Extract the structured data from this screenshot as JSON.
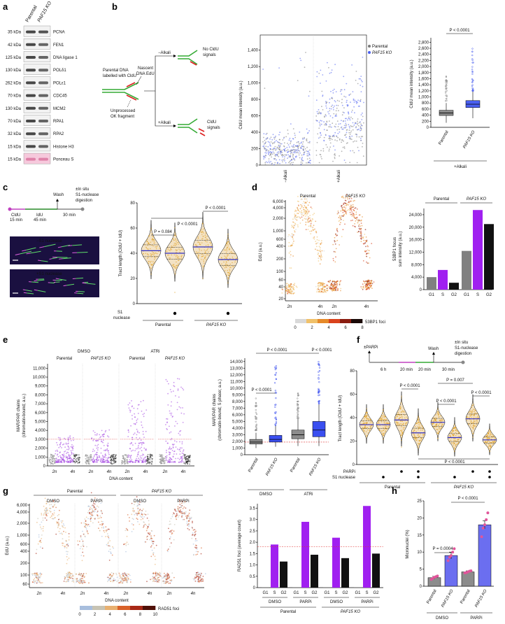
{
  "panels": {
    "a": {
      "label": "a",
      "header_parental": "Parental",
      "header_ko": "PAF15 KO",
      "rows": [
        {
          "kda": "35 kDa",
          "protein": "PCNA"
        },
        {
          "kda": "42 kDa",
          "protein": "FEN1"
        },
        {
          "kda": "125 kDa",
          "protein": "DNA ligase 1"
        },
        {
          "kda": "130 kDa",
          "protein": "POLδ1"
        },
        {
          "kda": "262 kDa",
          "protein": "POLε1"
        },
        {
          "kda": "70 kDa",
          "protein": "CDC45"
        },
        {
          "kda": "130 kDa",
          "protein": "MCM2"
        },
        {
          "kda": "70 kDa",
          "protein": "RPA1"
        },
        {
          "kda": "32 kDa",
          "protein": "RPA2"
        },
        {
          "kda": "15 kDa",
          "protein": "Histone H3"
        },
        {
          "kda": "15 kDa",
          "protein": "Ponceau S"
        }
      ]
    },
    "b": {
      "label": "b",
      "schematic": {
        "parental_line1": "Parental DNA",
        "parental_line2": "labelled with CldU",
        "nascent_line1": "Nascent",
        "nascent_line2": "DNA EdU",
        "minus_alkali": "−Alkali",
        "plus_alkali": "+Alkali",
        "no_signal_line1": "No CldU",
        "no_signal_line2": "signals",
        "signal_line1": "CldU",
        "signal_line2": "signals",
        "unprocessed_line1": "Unprocessed",
        "unprocessed_line2": "OK fragment"
      },
      "scatter": {
        "ylabel": "CldU mean intensity (a.u.)",
        "yticks": [
          "0",
          "200",
          "400",
          "600",
          "800",
          "1,000",
          "1,200",
          "1,400"
        ],
        "xcats": [
          "−Alkali",
          "+Alkali"
        ],
        "legend_parental": "Parental",
        "legend_ko": "PAF15 KO"
      },
      "box": {
        "ylabel": "CldU mean intensity (a.u.)",
        "yticks": [
          "0",
          "200",
          "400",
          "600",
          "800",
          "1,000",
          "1,200",
          "1,400",
          "1,600",
          "1,800",
          "2,000",
          "2,200",
          "2,400",
          "2,600",
          "2,800"
        ],
        "pvalue": "P < 0.0001",
        "xcats": [
          "Parental",
          "PAF15 KO"
        ],
        "group": "+Alkali"
      }
    },
    "c": {
      "label": "c",
      "schematic": {
        "wash": "Wash",
        "cldu": "CldU",
        "cldu_time": "15 min",
        "idu": "IdU",
        "idu_time": "45 min",
        "step_time": "30 min",
        "insitu_line1": "±In situ",
        "insitu_line2": "S1-nuclease",
        "insitu_line3": "digestion"
      },
      "img_minus": "−S1 nuclease",
      "img_plus": "+S1 nuclease",
      "violin": {
        "ylabel": "Tract length (CldU + IdU)",
        "yticks": [
          "0",
          "20",
          "40",
          "60",
          "80"
        ],
        "p1": "P = 0.084",
        "p2": "P < 0.0001",
        "p3": "P < 0.0001",
        "row_label_line1": "S1",
        "row_label_line2": "nuclease",
        "group1": "Parental",
        "group2": "PAF15 KO"
      }
    },
    "d": {
      "label": "d",
      "scatter": {
        "title_parental": "Parental",
        "title_ko": "PAF15 KO",
        "ylabel": "EdU (a.u.)",
        "yticks": [
          "20",
          "40",
          "60",
          "100",
          "200",
          "400",
          "600",
          "1,000",
          "2,000",
          "4,000",
          "6,000"
        ],
        "xticks": [
          "2n",
          "4n",
          "2n",
          "4n"
        ],
        "xlabel": "DNA content",
        "cbar_ticks": [
          "0",
          "2",
          "4",
          "6",
          "8"
        ],
        "cbar_label": "53BP1 foci"
      },
      "bar": {
        "ylabel_line1": "53BP1 focus",
        "ylabel_line2": "sum intensity (a.u.)",
        "yticks": [
          "0",
          "4,000",
          "8,000",
          "12,000",
          "16,000",
          "20,000",
          "24,000"
        ],
        "group1": "Parental",
        "group2": "PAF15 KO",
        "phases": [
          "G1",
          "S",
          "G2"
        ]
      }
    },
    "e": {
      "label": "e",
      "scatter": {
        "cond1": "DMSO",
        "cond2": "ATRi",
        "sub1": "Parental",
        "sub2": "PAF15 KO",
        "ylabel_line1": "MAR/PAR chains",
        "ylabel_line2": "(chromatin-bound; a.u.)",
        "yticks": [
          "0",
          "1,000",
          "2,000",
          "3,000",
          "4,000",
          "5,000",
          "6,000",
          "7,000",
          "8,000",
          "9,000",
          "10,000",
          "11,000"
        ],
        "xticks": [
          "2n",
          "4n"
        ],
        "xlabel": "DNA content"
      },
      "box": {
        "ylabel_line1": "MAR/PAR chains",
        "ylabel_line2": "(chromatin-bound; S phase; a.u.)",
        "yticks": [
          "0",
          "1,000",
          "2,000",
          "3,000",
          "4,000",
          "5,000",
          "6,000",
          "7,000",
          "8,000",
          "9,000",
          "10,000",
          "11,000",
          "12,000",
          "13,000",
          "14,000"
        ],
        "p1": "P < 0.0001",
        "p2": "P < 0.0001",
        "p3": "P < 0.0001",
        "xcats": [
          "Parental",
          "PAF15 KO",
          "Parental",
          "PAF15 KO"
        ],
        "group1": "DMSO",
        "group2": "ATRi"
      }
    },
    "f": {
      "label": "f",
      "schematic": {
        "parpi": "±PARPi",
        "wash": "Wash",
        "t1": "6 h",
        "t2": "20 min",
        "t3": "20 min",
        "t4": "30 min",
        "insitu_line1": "±In situ",
        "insitu_line2": "S1-nuclease",
        "insitu_line3": "digestion"
      },
      "violin": {
        "ylabel": "Tract length (CldU + IdU)",
        "yticks": [
          "0",
          "20",
          "40",
          "60",
          "80"
        ],
        "p1": "P < 0.0001",
        "p2": "P < 0.0001",
        "p3": "P = 0.007",
        "p4": "P < 0.0001",
        "p5": "P < 0.0001",
        "row1": "PARPi",
        "row2": "S1 nuclease",
        "group1": "Parental",
        "group2": "PAF15 KO"
      }
    },
    "g": {
      "label": "g",
      "scatter": {
        "group1": "Parental",
        "group2": "PAF15 KO",
        "cond1": "DMSO",
        "cond2": "PARPi",
        "ylabel": "EdU (a.u.)",
        "yticks": [
          "60",
          "100",
          "200",
          "400",
          "600",
          "1,000",
          "2,000",
          "4,000",
          "6,000"
        ],
        "xticks": [
          "2n",
          "4n"
        ],
        "xlabel": "DNA content",
        "cbar_ticks": [
          "0",
          "2",
          "4",
          "6",
          "8",
          "10"
        ],
        "cbar_label": "RAD51 foci"
      },
      "bar": {
        "ylabel": "RAD51 foci (average count)",
        "yticks": [
          "0",
          "0.5",
          "1.0",
          "1.5",
          "2.0",
          "2.5",
          "3.0",
          "3.5"
        ],
        "phases": [
          "G1",
          "S",
          "G2"
        ],
        "cond1": "DMSO",
        "cond2": "PARPi",
        "group1": "Parental",
        "group2": "PAF15 KO"
      }
    },
    "h": {
      "label": "h",
      "ylabel": "Micronuclei (%)",
      "yticks": [
        "0",
        "5",
        "10",
        "15",
        "20",
        "25"
      ],
      "p1": "P = 0.0004",
      "p2": "P < 0.0001",
      "xcats": [
        "Parental",
        "PAF15 KO",
        "Parental",
        "PAF15 KO"
      ],
      "group1": "DMSO",
      "group2": "PARPi"
    }
  },
  "chart_data": [
    {
      "type": "bar",
      "panel": "d",
      "categories": [
        "G1",
        "S",
        "G2",
        "G1",
        "S",
        "G2"
      ],
      "groups": [
        "Parental",
        "Parental",
        "Parental",
        "PAF15 KO",
        "PAF15 KO",
        "PAF15 KO"
      ],
      "values": [
        4000,
        6300,
        2200,
        12400,
        25500,
        21000
      ],
      "colors": [
        "#808080",
        "#a020f0",
        "#111111",
        "#808080",
        "#a020f0",
        "#111111"
      ],
      "ylabel": "53BP1 focus sum intensity (a.u.)",
      "ylim": [
        0,
        26000
      ]
    },
    {
      "type": "bar",
      "panel": "g",
      "categories": [
        "G1",
        "S",
        "G2",
        "G1",
        "S",
        "G2",
        "G1",
        "S",
        "G2",
        "G1",
        "S",
        "G2"
      ],
      "groups": [
        "Parental DMSO",
        "Parental DMSO",
        "Parental DMSO",
        "Parental PARPi",
        "Parental PARPi",
        "Parental PARPi",
        "PAF15 KO DMSO",
        "PAF15 KO DMSO",
        "PAF15 KO DMSO",
        "PAF15 KO PARPi",
        "PAF15 KO PARPi",
        "PAF15 KO PARPi"
      ],
      "values": [
        0.02,
        1.9,
        1.15,
        0.02,
        2.9,
        1.45,
        0.02,
        2.2,
        1.3,
        0.02,
        3.6,
        1.5
      ],
      "reference_line": 1.8,
      "ylabel": "RAD51 foci (average count)",
      "ylim": [
        0,
        3.7
      ]
    },
    {
      "type": "bar",
      "panel": "h",
      "categories": [
        "Parental",
        "PAF15 KO",
        "Parental",
        "PAF15 KO"
      ],
      "groups": [
        "DMSO",
        "DMSO",
        "PARPi",
        "PARPi"
      ],
      "values": [
        2.5,
        9.0,
        4.2,
        18.0
      ],
      "errors": [
        0.4,
        1.0,
        0.3,
        1.2
      ],
      "points": [
        [
          2.0,
          2.3,
          2.6,
          2.8,
          3.0
        ],
        [
          7.5,
          8.5,
          9.0,
          10.0,
          11.0
        ],
        [
          3.9,
          4.0,
          4.2,
          4.4,
          4.5
        ],
        [
          14.5,
          17.0,
          18.0,
          19.5,
          21.5
        ]
      ],
      "colors": [
        "#8c8c8c",
        "#6b6ef0",
        "#8c8c8c",
        "#6b6ef0"
      ],
      "ylabel": "Micronuclei (%)",
      "ylim": [
        0,
        25
      ]
    },
    {
      "type": "box",
      "panel": "b",
      "categories": [
        "Parental",
        "PAF15 KO"
      ],
      "median": [
        470,
        760
      ],
      "q1": [
        390,
        650
      ],
      "q3": [
        560,
        880
      ],
      "whisker_low": [
        150,
        300
      ],
      "whisker_high": [
        800,
        1200
      ],
      "outlier_max": [
        1750,
        2700
      ],
      "ylim": [
        0,
        2900
      ]
    },
    {
      "type": "box",
      "panel": "e",
      "categories": [
        "Parental",
        "PAF15 KO",
        "Parental",
        "PAF15 KO"
      ],
      "groups": [
        "DMSO",
        "DMSO",
        "ATRi",
        "ATRi"
      ],
      "median": [
        1900,
        2300,
        3000,
        3700
      ],
      "q1": [
        1600,
        1900,
        2400,
        2700
      ],
      "q3": [
        2300,
        2900,
        3700,
        5000
      ],
      "whisker_low": [
        1000,
        1200,
        1300,
        1300
      ],
      "whisker_high": [
        3300,
        4400,
        5500,
        7600
      ],
      "outlier_max": [
        9000,
        14500,
        9800,
        14500
      ],
      "reference_line": 1900,
      "ylim": [
        0,
        14500
      ]
    },
    {
      "type": "violin",
      "panel": "c",
      "categories": [
        "Parental −S1",
        "Parental +S1",
        "PAF15 KO −S1",
        "PAF15 KO +S1"
      ],
      "median": [
        42,
        40,
        45,
        35
      ],
      "ylim": [
        0,
        80
      ]
    },
    {
      "type": "violin",
      "panel": "f",
      "categories": [
        "Parental",
        "Parental +S1",
        "Parental +PARPi",
        "Parental +PARPi +S1",
        "PAF15 KO",
        "PAF15 KO +S1",
        "PAF15 KO +PARPi",
        "PAF15 KO +PARPi +S1"
      ],
      "median": [
        34,
        34,
        38,
        27,
        36,
        23,
        39,
        21
      ],
      "ylim": [
        0,
        80
      ]
    }
  ]
}
